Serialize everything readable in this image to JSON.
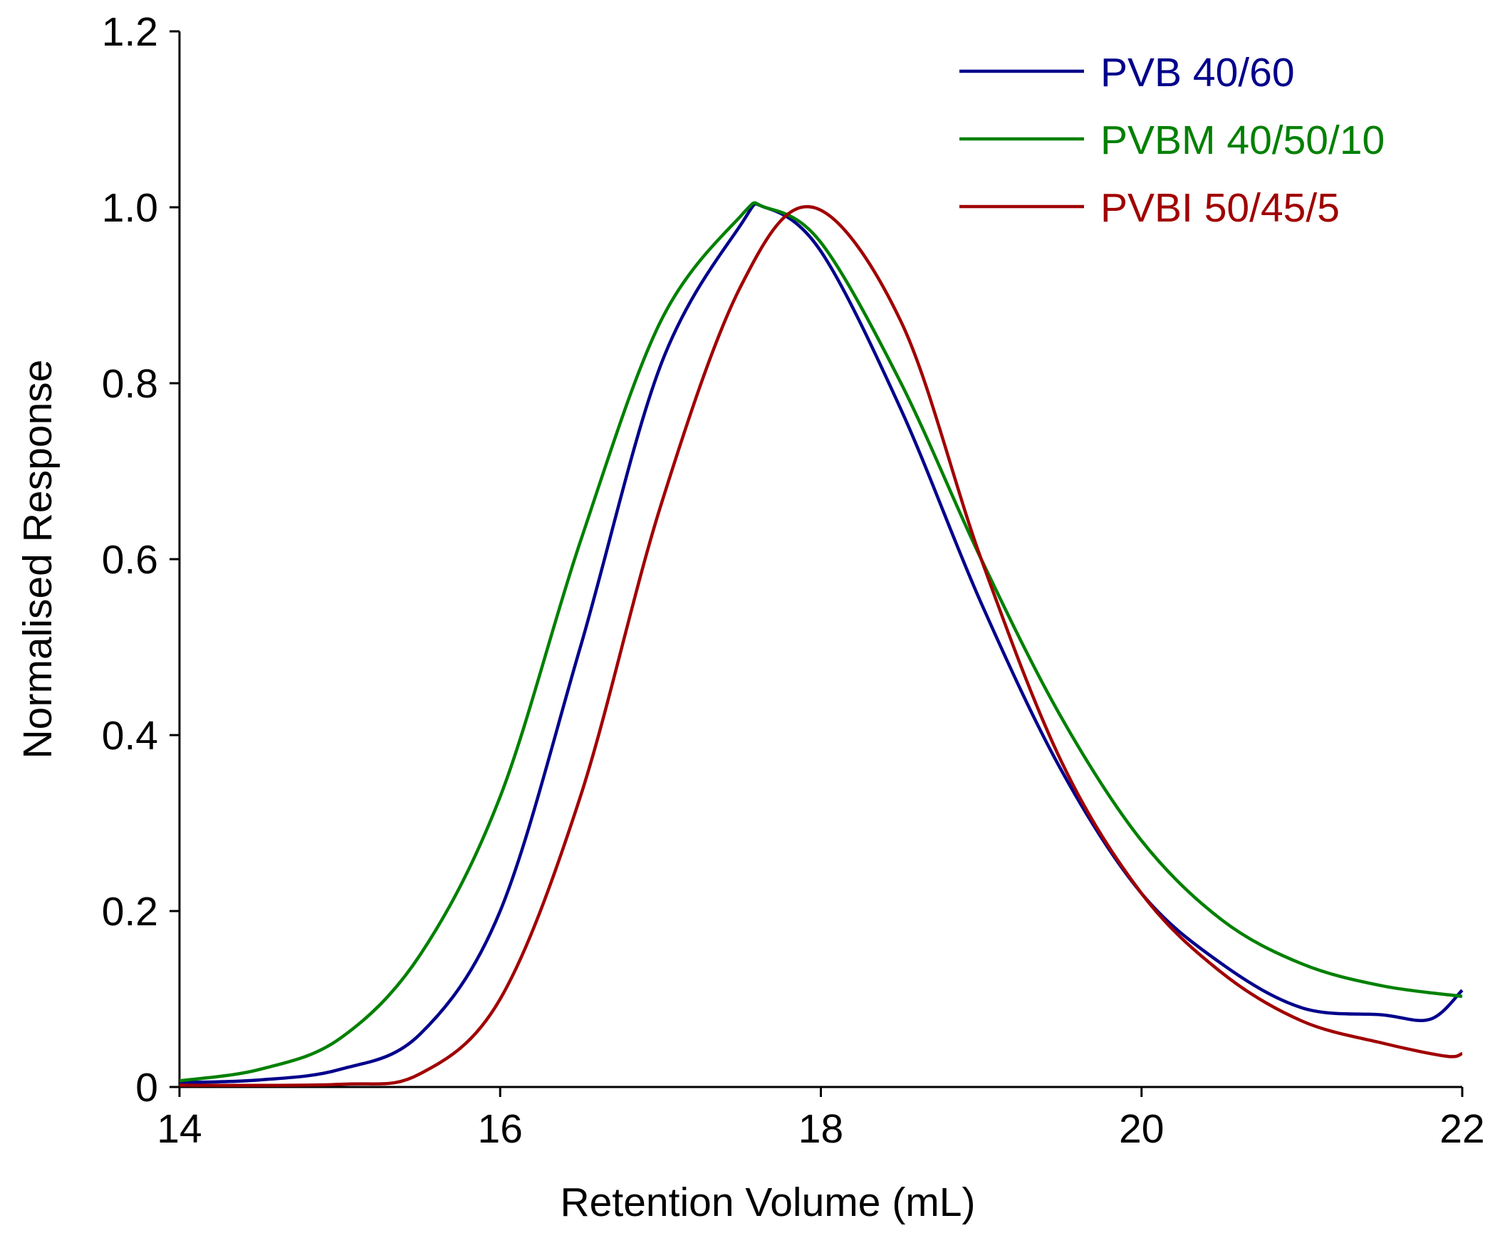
{
  "chart_data": {
    "type": "line",
    "title": "",
    "xlabel": "Retention Volume (mL)",
    "ylabel": "Normalised Response",
    "xlim": [
      14,
      22
    ],
    "ylim": [
      0,
      1.2
    ],
    "xticks": [
      14,
      16,
      18,
      20,
      22
    ],
    "xtick_labels": [
      "14",
      "16",
      "18",
      "20",
      "22"
    ],
    "yticks": [
      0,
      0.2,
      0.4,
      0.6,
      0.8,
      1.0,
      1.2
    ],
    "ytick_labels": [
      "0",
      "0.2",
      "0.4",
      "0.6",
      "0.8",
      "1.0",
      "1.2"
    ],
    "grid": false,
    "legend_position": "top-right",
    "series": [
      {
        "name": "PVB 40/60",
        "color": "#00008b",
        "x": [
          14,
          14.5,
          15,
          15.5,
          16,
          16.5,
          17,
          17.5,
          17.65,
          18,
          18.5,
          19,
          19.5,
          20,
          20.5,
          21,
          21.5,
          21.8,
          22
        ],
        "y": [
          0.005,
          0.008,
          0.02,
          0.06,
          0.2,
          0.5,
          0.82,
          0.98,
          1.0,
          0.95,
          0.77,
          0.55,
          0.36,
          0.22,
          0.14,
          0.09,
          0.082,
          0.077,
          0.11
        ]
      },
      {
        "name": "PVBM 40/50/10",
        "color": "#008000",
        "x": [
          14,
          14.5,
          15,
          15.5,
          16,
          16.5,
          17,
          17.5,
          17.65,
          18,
          18.5,
          19,
          19.5,
          20,
          20.5,
          21,
          21.5,
          22
        ],
        "y": [
          0.007,
          0.02,
          0.055,
          0.15,
          0.33,
          0.62,
          0.87,
          0.99,
          1.0,
          0.96,
          0.8,
          0.6,
          0.42,
          0.28,
          0.19,
          0.14,
          0.115,
          0.103
        ]
      },
      {
        "name": "PVBI 50/45/5",
        "color": "#a00000",
        "x": [
          14,
          15,
          15.5,
          16,
          16.5,
          17,
          17.5,
          17.95,
          18.5,
          19,
          19.5,
          20,
          20.5,
          21,
          21.5,
          21.9,
          22
        ],
        "y": [
          0.002,
          0.003,
          0.015,
          0.1,
          0.33,
          0.66,
          0.91,
          1.0,
          0.87,
          0.6,
          0.37,
          0.22,
          0.13,
          0.075,
          0.05,
          0.035,
          0.038
        ]
      }
    ]
  }
}
